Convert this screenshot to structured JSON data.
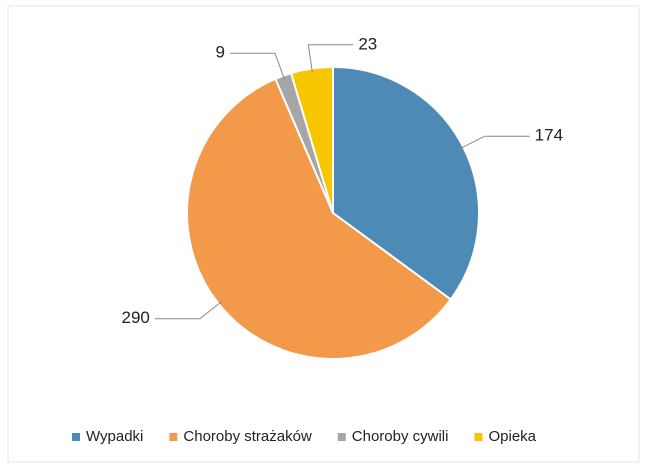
{
  "chart_data": {
    "type": "pie",
    "categories": [
      "Wypadki",
      "Choroby strażaków",
      "Choroby cywili",
      "Opieka"
    ],
    "values": [
      174,
      290,
      9,
      23
    ],
    "colors": [
      "#4d8ab5",
      "#f3994a",
      "#a6a6a6",
      "#f7c600"
    ],
    "legend": "bottom"
  }
}
